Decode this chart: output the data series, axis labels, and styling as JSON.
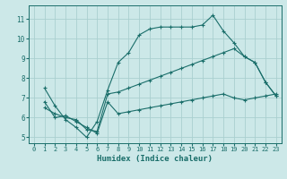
{
  "xlabel": "Humidex (Indice chaleur)",
  "bg_color": "#cce8e8",
  "grid_color": "#aacfcf",
  "line_color": "#1a6e6a",
  "xlim": [
    -0.5,
    23.5
  ],
  "ylim": [
    4.7,
    11.7
  ],
  "yticks": [
    5,
    6,
    7,
    8,
    9,
    10,
    11
  ],
  "xticks": [
    0,
    1,
    2,
    3,
    4,
    5,
    6,
    7,
    8,
    9,
    10,
    11,
    12,
    13,
    14,
    15,
    16,
    17,
    18,
    19,
    20,
    21,
    22,
    23
  ],
  "line1_x": [
    1,
    2,
    3,
    4,
    5,
    6,
    7,
    8,
    9,
    10,
    11,
    12,
    13,
    14,
    15,
    16,
    17,
    18,
    19,
    20,
    21,
    22,
    23
  ],
  "line1_y": [
    7.5,
    6.6,
    5.9,
    5.5,
    5.0,
    5.8,
    7.4,
    8.8,
    9.3,
    10.2,
    10.5,
    10.6,
    10.6,
    10.6,
    10.6,
    10.7,
    11.2,
    10.4,
    9.8,
    9.1,
    8.8,
    7.8,
    7.1
  ],
  "line2_x": [
    1,
    2,
    3,
    4,
    5,
    6,
    7,
    8,
    9,
    10,
    11,
    12,
    13,
    14,
    15,
    16,
    17,
    18,
    19,
    20,
    21,
    22,
    23
  ],
  "line2_y": [
    6.5,
    6.2,
    6.0,
    5.9,
    5.4,
    5.3,
    7.2,
    7.3,
    7.5,
    7.7,
    7.9,
    8.1,
    8.3,
    8.5,
    8.7,
    8.9,
    9.1,
    9.3,
    9.5,
    9.1,
    8.8,
    7.8,
    7.1
  ],
  "line3_x": [
    1,
    2,
    3,
    4,
    5,
    6,
    7,
    8,
    9,
    10,
    11,
    12,
    13,
    14,
    15,
    16,
    17,
    18,
    19,
    20,
    21,
    22,
    23
  ],
  "line3_y": [
    6.8,
    6.0,
    6.1,
    5.8,
    5.5,
    5.2,
    6.8,
    6.2,
    6.3,
    6.4,
    6.5,
    6.6,
    6.7,
    6.8,
    6.9,
    7.0,
    7.1,
    7.2,
    7.0,
    6.9,
    7.0,
    7.1,
    7.2
  ]
}
